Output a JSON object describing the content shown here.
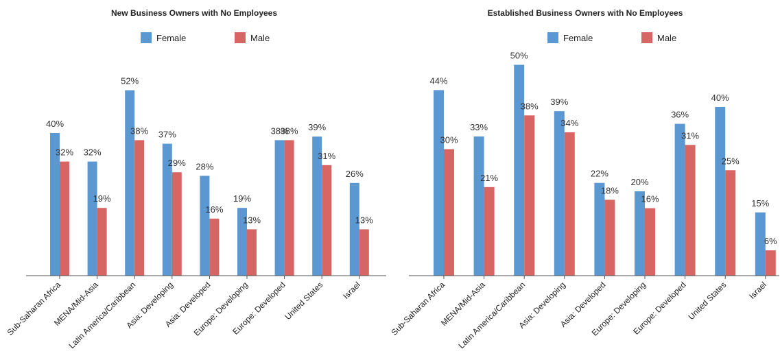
{
  "colors": {
    "female": "#5b97d1",
    "male": "#d66563",
    "axis": "#555555"
  },
  "chart_data": [
    {
      "type": "bar",
      "title": "New Business Owners with No Employees",
      "categories": [
        "Sub-Saharan Africa",
        "MENA/Mid-Asia",
        "Latin America/Caribbean",
        "Asia: Developing",
        "Asia: Developed",
        "Europe: Developing",
        "Europe: Developed",
        "United States",
        "Israel"
      ],
      "series": [
        {
          "name": "Female",
          "values": [
            40,
            32,
            52,
            37,
            28,
            19,
            38,
            39,
            26
          ],
          "labels": [
            "40%",
            "32%",
            "52%",
            "37%",
            "28%",
            "19%",
            "38%",
            "39%",
            "26%"
          ]
        },
        {
          "name": "Male",
          "values": [
            32,
            19,
            38,
            29,
            16,
            13,
            38,
            31,
            13
          ],
          "labels": [
            "32%",
            "19%",
            "38%",
            "29%",
            "16%",
            "13%",
            "38%",
            "31%",
            "13%"
          ]
        }
      ],
      "ylim": [
        0,
        60
      ],
      "grid": false,
      "legend": "top"
    },
    {
      "type": "bar",
      "title": "Established Business Owners with No Employees",
      "categories": [
        "Sub-Saharan Africa",
        "MENA/Mid-Asia",
        "Latin America/Caribbean",
        "Asia: Developing",
        "Asia: Developed",
        "Europe: Developing",
        "Europe: Developed",
        "United States",
        "Israel"
      ],
      "series": [
        {
          "name": "Female",
          "values": [
            44,
            33,
            50,
            39,
            22,
            20,
            36,
            40,
            15
          ],
          "labels": [
            "44%",
            "33%",
            "50%",
            "39%",
            "22%",
            "20%",
            "36%",
            "40%",
            "15%"
          ]
        },
        {
          "name": "Male",
          "values": [
            30,
            21,
            38,
            34,
            18,
            16,
            31,
            25,
            6
          ],
          "labels": [
            "30%",
            "21%",
            "38%",
            "34%",
            "18%",
            "16%",
            "31%",
            "25%",
            "6%"
          ]
        }
      ],
      "ylim": [
        0,
        60
      ],
      "grid": false,
      "legend": "top"
    }
  ]
}
